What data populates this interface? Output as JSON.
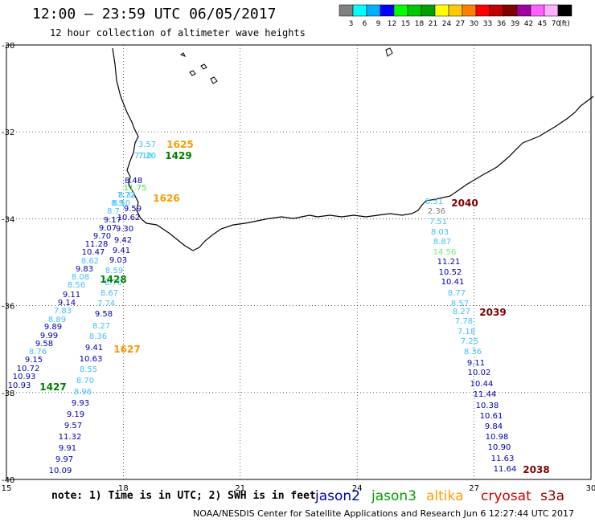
{
  "title": "12:00 – 23:59 UTC 06/05/2017",
  "subtitle": "12 hour collection of altimeter wave heights",
  "colorbar": {
    "colors": [
      "#808080",
      "#00ffff",
      "#00b0ff",
      "#0000ff",
      "#00ff00",
      "#00c800",
      "#00a000",
      "#ffff00",
      "#ffc800",
      "#ff8000",
      "#ff0000",
      "#c00000",
      "#800000",
      "#a000a0",
      "#ff60ff",
      "#ffb0ff",
      "#000000"
    ],
    "labels": [
      "3",
      "6",
      "9",
      "12",
      "15",
      "18",
      "21",
      "24",
      "27",
      "30",
      "33",
      "36",
      "39",
      "42",
      "45",
      "70",
      "(ft)"
    ]
  },
  "axes": {
    "lat_labels": [
      "-30",
      "-32",
      "-34",
      "-36",
      "-38",
      "-40"
    ],
    "lon_labels": [
      "15",
      "18",
      "21",
      "24",
      "27",
      "30"
    ]
  },
  "note": "note: 1) Time is in UTC; 2) SWH is in feet",
  "legend": [
    {
      "name": "jason2",
      "color": "#0000c0"
    },
    {
      "name": "jason3",
      "color": "#00a000"
    },
    {
      "name": "altika",
      "color": "#ffa000"
    },
    {
      "name": "cryosat",
      "color": "#d00000"
    },
    {
      "name": "s3a",
      "color": "#900000"
    }
  ],
  "footer": "NOAA/NESDIS Center for Satellite Applications and Research     Jun  6 12:27:44 UTC 2017",
  "passes": [
    {
      "label": "1625",
      "color": "#ff9900"
    },
    {
      "label": "1429",
      "color": "#008000"
    },
    {
      "label": "1626",
      "color": "#ff9900"
    },
    {
      "label": "1428",
      "color": "#008000"
    },
    {
      "label": "1627",
      "color": "#ff9900"
    },
    {
      "label": "1427",
      "color": "#008000"
    },
    {
      "label": "2040",
      "color": "#800000"
    },
    {
      "label": "2039",
      "color": "#800000"
    },
    {
      "label": "2038",
      "color": "#800000"
    }
  ],
  "observations": [
    {
      "v": "3.57",
      "c": "#40c0ff"
    },
    {
      "v": "7.20",
      "c": "#00d0ff"
    },
    {
      "v": "7.10",
      "c": "#40c0ff"
    },
    {
      "v": "8.48",
      "c": "#0000b0"
    },
    {
      "v": "11.75",
      "c": "#40e040"
    },
    {
      "v": "7.72",
      "c": "#40c0ff"
    },
    {
      "v": "8.32",
      "c": "#40c0ff"
    },
    {
      "v": "8.50",
      "c": "#40c0ff"
    },
    {
      "v": "8.9",
      "c": "#40c0ff"
    },
    {
      "v": "9.59",
      "c": "#0000b0"
    },
    {
      "v": "8.7",
      "c": "#40c0ff"
    },
    {
      "v": "10.62",
      "c": "#0000b0"
    },
    {
      "v": "9.17",
      "c": "#0000b0"
    },
    {
      "v": "9.07",
      "c": "#0000b0"
    },
    {
      "v": "9.30",
      "c": "#0000b0"
    },
    {
      "v": "9.70",
      "c": "#0000b0"
    },
    {
      "v": "9.42",
      "c": "#0000b0"
    },
    {
      "v": "11.28",
      "c": "#0000b0"
    },
    {
      "v": "10.47",
      "c": "#0000b0"
    },
    {
      "v": "9.41",
      "c": "#0000b0"
    },
    {
      "v": "8.62",
      "c": "#40c0ff"
    },
    {
      "v": "9.03",
      "c": "#0000b0"
    },
    {
      "v": "9.83",
      "c": "#0000b0"
    },
    {
      "v": "8.59",
      "c": "#40c0ff"
    },
    {
      "v": "8.08",
      "c": "#40c0ff"
    },
    {
      "v": "8.70",
      "c": "#40c0ff"
    },
    {
      "v": "8.56",
      "c": "#40c0ff"
    },
    {
      "v": "8.67",
      "c": "#40c0ff"
    },
    {
      "v": "9.11",
      "c": "#0000b0"
    },
    {
      "v": "7.74",
      "c": "#40c0ff"
    },
    {
      "v": "9.14",
      "c": "#0000b0"
    },
    {
      "v": "7.83",
      "c": "#40c0ff"
    },
    {
      "v": "8.89",
      "c": "#40c0ff"
    },
    {
      "v": "9.58",
      "c": "#0000b0"
    },
    {
      "v": "9.89",
      "c": "#0000b0"
    },
    {
      "v": "8.27",
      "c": "#40c0ff"
    },
    {
      "v": "9.99",
      "c": "#0000b0"
    },
    {
      "v": "8.36",
      "c": "#40c0ff"
    },
    {
      "v": "9.58",
      "c": "#0000b0"
    },
    {
      "v": "8.76",
      "c": "#40c0ff"
    },
    {
      "v": "9.41",
      "c": "#0000b0"
    },
    {
      "v": "9.15",
      "c": "#0000b0"
    },
    {
      "v": "10.63",
      "c": "#0000b0"
    },
    {
      "v": "10.72",
      "c": "#0000b0"
    },
    {
      "v": "10.93",
      "c": "#0000b0"
    },
    {
      "v": "8.55",
      "c": "#40c0ff"
    },
    {
      "v": "8.70",
      "c": "#40c0ff"
    },
    {
      "v": "10.93",
      "c": "#0000b0"
    },
    {
      "v": "8.96",
      "c": "#40c0ff"
    },
    {
      "v": "9.93",
      "c": "#0000b0"
    },
    {
      "v": "9.19",
      "c": "#0000b0"
    },
    {
      "v": "9.57",
      "c": "#0000b0"
    },
    {
      "v": "11.32",
      "c": "#0000b0"
    },
    {
      "v": "9.91",
      "c": "#0000b0"
    },
    {
      "v": "9.97",
      "c": "#0000b0"
    },
    {
      "v": "10.09",
      "c": "#0000b0"
    },
    {
      "v": "8.51",
      "c": "#40c0ff"
    },
    {
      "v": "2.36",
      "c": "#808080"
    },
    {
      "v": "7.51",
      "c": "#40c0ff"
    },
    {
      "v": "8.03",
      "c": "#40c0ff"
    },
    {
      "v": "8.87",
      "c": "#40c0ff"
    },
    {
      "v": "14.56",
      "c": "#70ee70"
    },
    {
      "v": "11.21",
      "c": "#0000b0"
    },
    {
      "v": "10.52",
      "c": "#0000b0"
    },
    {
      "v": "10.41",
      "c": "#0000b0"
    },
    {
      "v": "8.77",
      "c": "#40c0ff"
    },
    {
      "v": "8.57",
      "c": "#40c0ff"
    },
    {
      "v": "8.27",
      "c": "#40c0ff"
    },
    {
      "v": "7.78",
      "c": "#40c0ff"
    },
    {
      "v": "7.18",
      "c": "#40c0ff"
    },
    {
      "v": "7.25",
      "c": "#40c0ff"
    },
    {
      "v": "8.36",
      "c": "#40c0ff"
    },
    {
      "v": "9.11",
      "c": "#0000b0"
    },
    {
      "v": "10.02",
      "c": "#0000b0"
    },
    {
      "v": "10.44",
      "c": "#0000b0"
    },
    {
      "v": "11.44",
      "c": "#0000b0"
    },
    {
      "v": "10.38",
      "c": "#0000b0"
    },
    {
      "v": "10.61",
      "c": "#0000b0"
    },
    {
      "v": "9.84",
      "c": "#0000b0"
    },
    {
      "v": "10.98",
      "c": "#0000b0"
    },
    {
      "v": "10.90",
      "c": "#0000b0"
    },
    {
      "v": "11.63",
      "c": "#0000b0"
    },
    {
      "v": "11.64",
      "c": "#0000b0"
    }
  ]
}
